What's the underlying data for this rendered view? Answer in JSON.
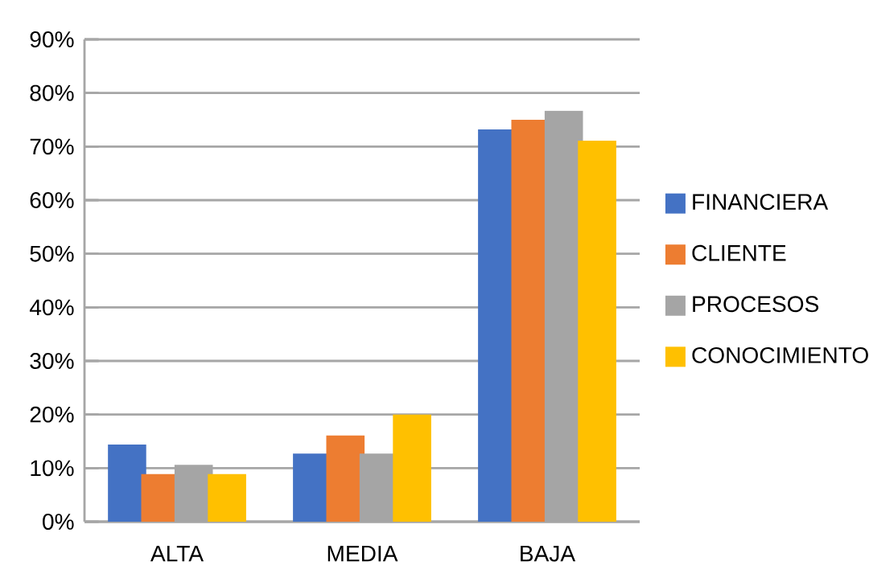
{
  "chart_data": {
    "type": "bar",
    "categories": [
      "ALTA",
      "MEDIA",
      "BAJA"
    ],
    "series": [
      {
        "name": "FINANCIERA",
        "color": "#4472c4",
        "values": [
          14.4,
          12.7,
          73.2
        ]
      },
      {
        "name": "CLIENTE",
        "color": "#ed7d31",
        "values": [
          8.9,
          16.1,
          75.0
        ]
      },
      {
        "name": "PROCESOS",
        "color": "#a5a5a5",
        "values": [
          10.6,
          12.7,
          76.7
        ]
      },
      {
        "name": "CONOCIMIENTO",
        "color": "#ffc000",
        "values": [
          8.9,
          20.0,
          71.1
        ]
      }
    ],
    "ylim": [
      0,
      90
    ],
    "yticks": [
      {
        "value": 0,
        "label": "0%"
      },
      {
        "value": 10,
        "label": "10%"
      },
      {
        "value": 20,
        "label": "20%"
      },
      {
        "value": 30,
        "label": "30%"
      },
      {
        "value": 40,
        "label": "40%"
      },
      {
        "value": 50,
        "label": "50%"
      },
      {
        "value": 60,
        "label": "60%"
      },
      {
        "value": 70,
        "label": "70%"
      },
      {
        "value": 80,
        "label": "80%"
      },
      {
        "value": 90,
        "label": "90%"
      }
    ],
    "grid": "y",
    "legend": "right"
  }
}
